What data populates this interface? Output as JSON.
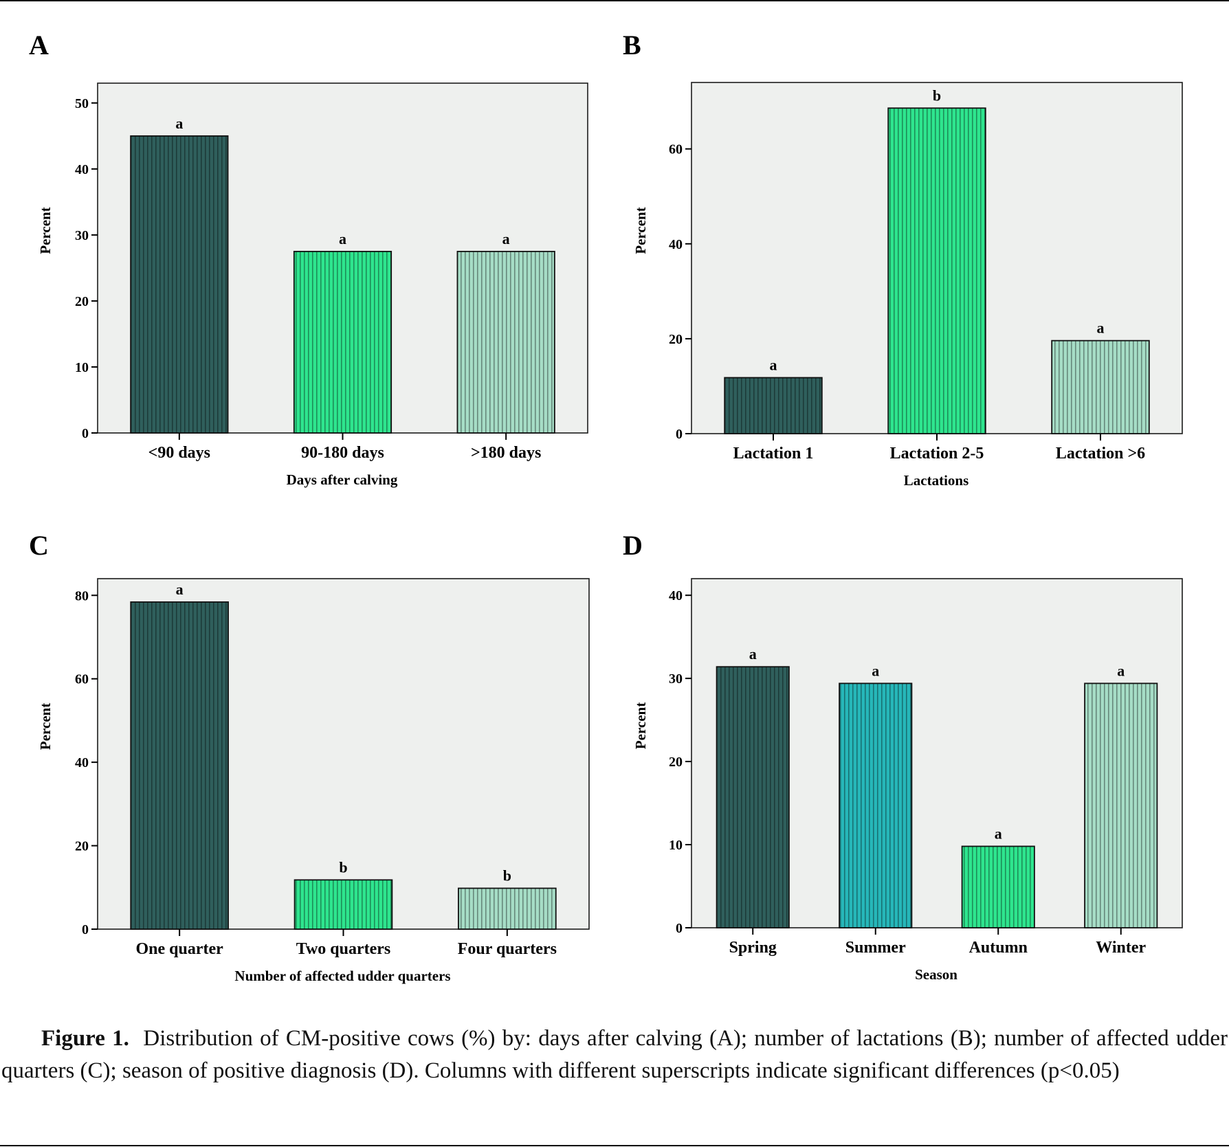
{
  "caption": {
    "label": "Figure 1.",
    "text": "Distribution of CM-positive cows (%) by: days after calving (A); number of lactations (B); number of affected udder quarters (C); season of positive diagnosis (D). Columns with different superscripts indicate significant differences (p<0.05)"
  },
  "colors": {
    "plot_background": "#eef0ee",
    "dark_teal": "#2f5f5c",
    "green": "#2ee58e",
    "light_green": "#a6ddc6",
    "teal": "#26b7b9"
  },
  "chart_data": [
    {
      "panel": "A",
      "type": "bar",
      "categories": [
        "<90 days",
        "90-180 days",
        ">180 days"
      ],
      "values": [
        45,
        27.5,
        27.5
      ],
      "letters": [
        "a",
        "a",
        "a"
      ],
      "colors": [
        "#2f5f5c",
        "#2ee58e",
        "#a6ddc6"
      ],
      "ylabel": "Percent",
      "xlabel": "Days after calving",
      "ylim": [
        0,
        53
      ],
      "yticks": [
        0,
        10,
        20,
        30,
        40,
        50
      ],
      "grid": false,
      "legend": "none"
    },
    {
      "panel": "B",
      "type": "bar",
      "categories": [
        "Lactation 1",
        "Lactation 2-5",
        "Lactation >6"
      ],
      "values": [
        11.8,
        68.6,
        19.6
      ],
      "letters": [
        "a",
        "b",
        "a"
      ],
      "colors": [
        "#2f5f5c",
        "#2ee58e",
        "#a6ddc6"
      ],
      "ylabel": "Percent",
      "xlabel": "Lactations",
      "ylim": [
        0,
        74
      ],
      "yticks": [
        0,
        20,
        40,
        60
      ],
      "grid": false,
      "legend": "none"
    },
    {
      "panel": "C",
      "type": "bar",
      "categories": [
        "One quarter",
        "Two quarters",
        "Four quarters"
      ],
      "values": [
        78.4,
        11.8,
        9.8
      ],
      "letters": [
        "a",
        "b",
        "b"
      ],
      "colors": [
        "#2f5f5c",
        "#2ee58e",
        "#a6ddc6"
      ],
      "ylabel": "Percent",
      "xlabel": "Number of affected udder quarters",
      "ylim": [
        0,
        84
      ],
      "yticks": [
        0,
        20,
        40,
        60,
        80
      ],
      "grid": false,
      "legend": "none"
    },
    {
      "panel": "D",
      "type": "bar",
      "categories": [
        "Spring",
        "Summer",
        "Autumn",
        "Winter"
      ],
      "values": [
        31.4,
        29.4,
        9.8,
        29.4
      ],
      "letters": [
        "a",
        "a",
        "a",
        "a"
      ],
      "colors": [
        "#2f5f5c",
        "#26b7b9",
        "#2ee58e",
        "#a6ddc6"
      ],
      "ylabel": "Percent",
      "xlabel": "Season",
      "ylim": [
        0,
        42
      ],
      "yticks": [
        0,
        10,
        20,
        30,
        40
      ],
      "grid": false,
      "legend": "none"
    }
  ]
}
